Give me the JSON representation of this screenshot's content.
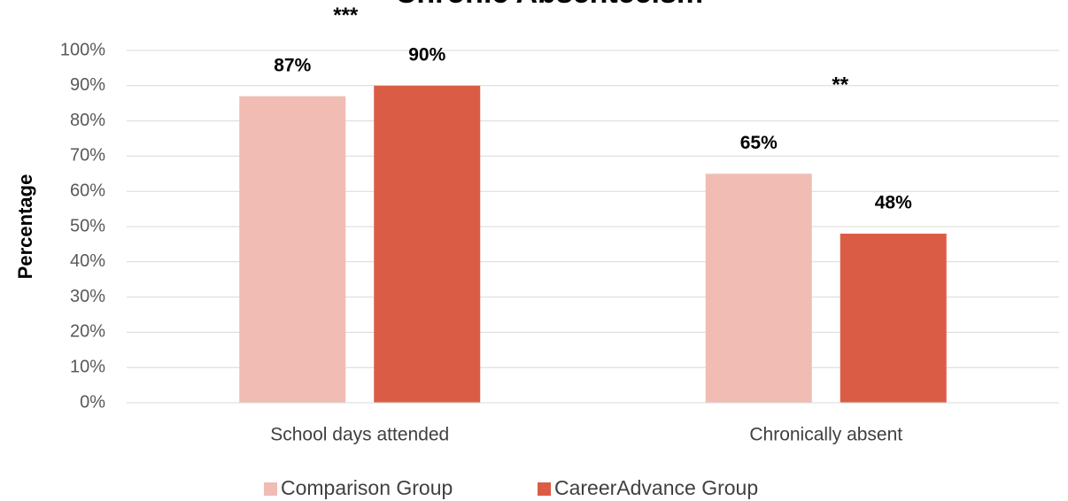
{
  "chart_data": {
    "type": "bar",
    "title": "Chronic Absenteeism",
    "ylabel": "Percentage",
    "categories": [
      "School days attended",
      "Chronically absent"
    ],
    "series": [
      {
        "name": "Comparison Group",
        "color": "#f0bcb3",
        "values": [
          87,
          65
        ],
        "value_labels": [
          "87%",
          "65%"
        ]
      },
      {
        "name": "CareerAdvance Group",
        "color": "#db5c45",
        "values": [
          90,
          48
        ],
        "value_labels": [
          "90%",
          "48%"
        ]
      }
    ],
    "annotations": [
      "***",
      "**"
    ],
    "ylim": [
      0,
      100
    ],
    "yticks": [
      {
        "value": 0,
        "label": "0%"
      },
      {
        "value": 10,
        "label": "10%"
      },
      {
        "value": 20,
        "label": "20%"
      },
      {
        "value": 30,
        "label": "30%"
      },
      {
        "value": 40,
        "label": "40%"
      },
      {
        "value": 50,
        "label": "50%"
      },
      {
        "value": 60,
        "label": "60%"
      },
      {
        "value": 70,
        "label": "70%"
      },
      {
        "value": 80,
        "label": "80%"
      },
      {
        "value": 90,
        "label": "90%"
      },
      {
        "value": 100,
        "label": "100%"
      }
    ],
    "grid": true,
    "legend": "bottom"
  }
}
